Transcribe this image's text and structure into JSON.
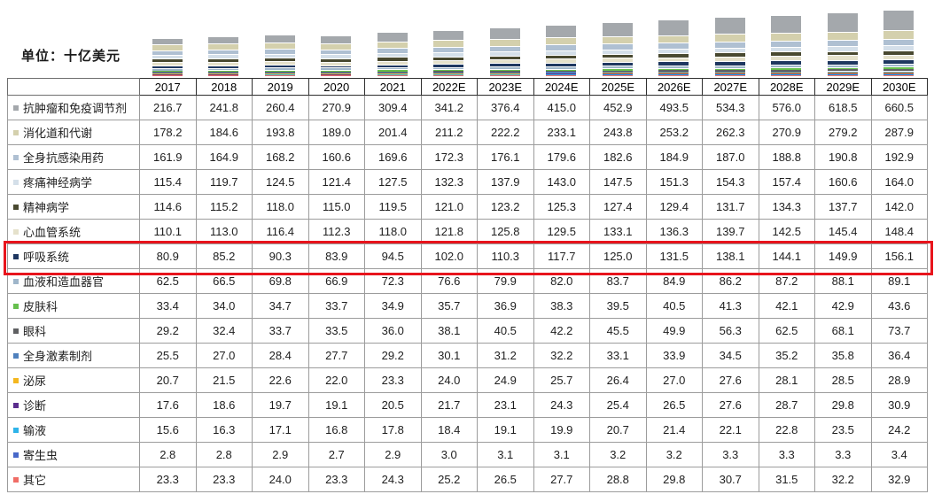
{
  "unit_label": "单位：十亿美元",
  "highlight_color": "#e8141c",
  "highlighted_row": "呼吸系统",
  "chart_data": {
    "type": "bar",
    "stacked": true,
    "legend_position": "table-row-labels",
    "value_format": "0.0",
    "x": [
      "2017",
      "2018",
      "2019",
      "2020",
      "2021",
      "2022E",
      "2023E",
      "2024E",
      "2025E",
      "2026E",
      "2027E",
      "2028E",
      "2029E",
      "2030E"
    ],
    "series": [
      {
        "name": "抗肿瘤和免疫调节剂",
        "color": "#a4a8ac",
        "highlighted": false,
        "values": [
          216.7,
          241.8,
          260.4,
          270.9,
          309.4,
          341.2,
          376.4,
          415.0,
          452.9,
          493.5,
          534.3,
          576.0,
          618.5,
          660.5
        ]
      },
      {
        "name": "消化道和代谢",
        "color": "#d4d0ad",
        "highlighted": false,
        "values": [
          178.2,
          184.6,
          193.8,
          189.0,
          201.4,
          211.2,
          222.2,
          233.1,
          243.8,
          253.2,
          262.3,
          270.9,
          279.2,
          287.9
        ]
      },
      {
        "name": "全身抗感染用药",
        "color": "#afc0d2",
        "highlighted": false,
        "values": [
          161.9,
          164.9,
          168.2,
          160.6,
          169.6,
          172.3,
          176.1,
          179.6,
          182.6,
          184.9,
          187.0,
          188.8,
          190.8,
          192.9
        ]
      },
      {
        "name": "疼痛神经病学",
        "color": "#d4dfe9",
        "highlighted": false,
        "values": [
          115.4,
          119.7,
          124.5,
          121.4,
          127.5,
          132.3,
          137.9,
          143.0,
          147.5,
          151.3,
          154.3,
          157.4,
          160.6,
          164.0
        ]
      },
      {
        "name": "精神病学",
        "color": "#494930",
        "highlighted": false,
        "values": [
          114.6,
          115.2,
          118.0,
          115.0,
          119.5,
          121.0,
          123.2,
          125.3,
          127.4,
          129.4,
          131.7,
          134.3,
          137.7,
          142.0
        ]
      },
      {
        "name": "心血管系统",
        "color": "#e5e1cb",
        "highlighted": false,
        "values": [
          110.1,
          113.0,
          116.4,
          112.3,
          118.0,
          121.8,
          125.8,
          129.5,
          133.1,
          136.3,
          139.7,
          142.5,
          145.4,
          148.4
        ]
      },
      {
        "name": "呼吸系统",
        "color": "#1e3760",
        "highlighted": true,
        "values": [
          80.9,
          85.2,
          90.3,
          83.9,
          94.5,
          102.0,
          110.3,
          117.7,
          125.0,
          131.5,
          138.1,
          144.1,
          149.9,
          156.1
        ]
      },
      {
        "name": "血液和造血器官",
        "color": "#9fb6ca",
        "highlighted": false,
        "values": [
          62.5,
          66.5,
          69.8,
          66.9,
          72.3,
          76.6,
          79.9,
          82.0,
          83.7,
          84.9,
          86.2,
          87.2,
          88.1,
          89.1
        ]
      },
      {
        "name": "皮肤科",
        "color": "#66bf4d",
        "highlighted": false,
        "values": [
          33.4,
          34.0,
          34.7,
          33.7,
          34.9,
          35.7,
          36.9,
          38.3,
          39.5,
          40.5,
          41.3,
          42.1,
          42.9,
          43.6
        ]
      },
      {
        "name": "眼科",
        "color": "#5f6062",
        "highlighted": false,
        "values": [
          29.2,
          32.4,
          33.7,
          33.5,
          36.0,
          38.1,
          40.5,
          42.2,
          45.5,
          49.9,
          56.3,
          62.5,
          68.1,
          73.7
        ]
      },
      {
        "name": "全身激素制剂",
        "color": "#4f81bd",
        "highlighted": false,
        "values": [
          25.5,
          27.0,
          28.4,
          27.7,
          29.2,
          30.1,
          31.2,
          32.2,
          33.1,
          33.9,
          34.5,
          35.2,
          35.8,
          36.4
        ]
      },
      {
        "name": "泌尿",
        "color": "#f4b71f",
        "highlighted": false,
        "values": [
          20.7,
          21.5,
          22.6,
          22.0,
          23.3,
          24.0,
          24.9,
          25.7,
          26.4,
          27.0,
          27.6,
          28.1,
          28.5,
          28.9
        ]
      },
      {
        "name": "诊断",
        "color": "#5b2d8e",
        "highlighted": false,
        "values": [
          17.6,
          18.6,
          19.7,
          19.1,
          20.5,
          21.7,
          23.1,
          24.3,
          25.4,
          26.5,
          27.6,
          28.7,
          29.8,
          30.9
        ]
      },
      {
        "name": "输液",
        "color": "#2fb4e9",
        "highlighted": false,
        "values": [
          15.6,
          16.3,
          17.1,
          16.8,
          17.8,
          18.4,
          19.1,
          19.9,
          20.7,
          21.4,
          22.1,
          22.8,
          23.5,
          24.2
        ]
      },
      {
        "name": "寄生虫",
        "color": "#4868c9",
        "highlighted": false,
        "values": [
          2.8,
          2.8,
          2.9,
          2.7,
          2.9,
          3.0,
          3.1,
          3.1,
          3.2,
          3.2,
          3.3,
          3.3,
          3.3,
          3.4
        ]
      },
      {
        "name": "其它",
        "color": "#f06d66",
        "highlighted": false,
        "values": [
          23.3,
          23.3,
          24.0,
          23.3,
          24.3,
          25.2,
          26.5,
          27.7,
          28.8,
          29.8,
          30.7,
          31.5,
          32.2,
          32.9
        ]
      }
    ]
  }
}
